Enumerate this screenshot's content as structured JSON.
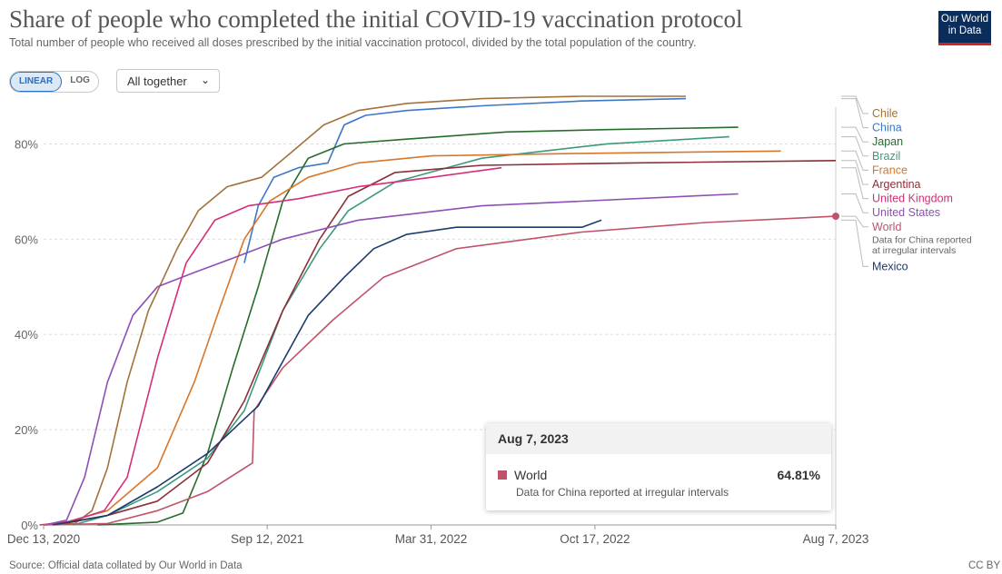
{
  "header": {
    "title": "Share of people who completed the initial COVID-19 vaccination protocol",
    "subtitle": "Total number of people who received all doses prescribed by the initial vaccination protocol, divided by the total population of the country.",
    "logo_line1": "Our World",
    "logo_line2": "in Data"
  },
  "controls": {
    "linear_label": "LINEAR",
    "log_label": "LOG",
    "dropdown_label": "All together",
    "selected_scale": "linear"
  },
  "tooltip": {
    "date": "Aug 7, 2023",
    "entity": "World",
    "value": "64.81%",
    "note": "Data for China reported at irregular intervals"
  },
  "footer": {
    "source": "Source: Official data collated by Our World in Data",
    "license": "CC BY"
  },
  "chart_data": {
    "type": "line",
    "title": "Share of people who completed the initial COVID-19 vaccination protocol",
    "ylabel": "",
    "xlabel": "",
    "y_unit": "%",
    "ylim": [
      0,
      90
    ],
    "xlim": [
      "2020-12-13",
      "2023-08-07"
    ],
    "grid": "horizontal dashed",
    "legend": "right",
    "x_ticks": [
      {
        "date": "2020-12-13",
        "label": "Dec 13, 2020"
      },
      {
        "date": "2021-09-12",
        "label": "Sep 12, 2021"
      },
      {
        "date": "2022-03-31",
        "label": "Mar 31, 2022"
      },
      {
        "date": "2022-10-17",
        "label": "Oct 17, 2022"
      },
      {
        "date": "2023-08-07",
        "label": "Aug 7, 2023"
      }
    ],
    "y_ticks": [
      {
        "value": 0,
        "label": "0%"
      },
      {
        "value": 20,
        "label": "20%"
      },
      {
        "value": 40,
        "label": "40%"
      },
      {
        "value": 60,
        "label": "60%"
      },
      {
        "value": 80,
        "label": "80%"
      }
    ],
    "series": [
      {
        "name": "Chile",
        "color": "#a2723a",
        "points": [
          [
            "2020-12-13",
            0
          ],
          [
            "2021-01-20",
            0.3
          ],
          [
            "2021-02-10",
            3
          ],
          [
            "2021-03-01",
            12
          ],
          [
            "2021-03-25",
            30
          ],
          [
            "2021-04-20",
            45
          ],
          [
            "2021-05-25",
            58
          ],
          [
            "2021-06-20",
            66
          ],
          [
            "2021-07-25",
            71
          ],
          [
            "2021-09-05",
            73
          ],
          [
            "2021-10-10",
            78
          ],
          [
            "2021-11-20",
            84
          ],
          [
            "2022-01-01",
            87
          ],
          [
            "2022-03-01",
            88.5
          ],
          [
            "2022-06-01",
            89.5
          ],
          [
            "2022-10-01",
            90
          ],
          [
            "2023-02-05",
            90
          ]
        ]
      },
      {
        "name": "China",
        "color": "#3c78c7",
        "points": [
          [
            "2021-08-15",
            55
          ],
          [
            "2021-09-01",
            67
          ],
          [
            "2021-09-20",
            73
          ],
          [
            "2021-10-20",
            75
          ],
          [
            "2021-11-25",
            76
          ],
          [
            "2021-12-15",
            84
          ],
          [
            "2022-01-10",
            86
          ],
          [
            "2022-03-01",
            87
          ],
          [
            "2022-06-01",
            88
          ],
          [
            "2022-10-01",
            89
          ],
          [
            "2023-02-05",
            89.5
          ]
        ]
      },
      {
        "name": "Japan",
        "color": "#276c2d",
        "points": [
          [
            "2021-02-17",
            0
          ],
          [
            "2021-05-01",
            0.6
          ],
          [
            "2021-06-01",
            2.5
          ],
          [
            "2021-07-01",
            15
          ],
          [
            "2021-08-01",
            33
          ],
          [
            "2021-09-01",
            50
          ],
          [
            "2021-10-01",
            68
          ],
          [
            "2021-11-01",
            77
          ],
          [
            "2021-12-15",
            80
          ],
          [
            "2022-03-01",
            81
          ],
          [
            "2022-07-01",
            82.5
          ],
          [
            "2022-11-01",
            83
          ],
          [
            "2023-04-10",
            83.5
          ]
        ]
      },
      {
        "name": "Brazil",
        "color": "#3a9b7c",
        "points": [
          [
            "2021-01-18",
            0
          ],
          [
            "2021-03-01",
            2
          ],
          [
            "2021-05-01",
            7
          ],
          [
            "2021-07-01",
            14
          ],
          [
            "2021-08-15",
            24
          ],
          [
            "2021-10-01",
            45
          ],
          [
            "2021-11-15",
            58
          ],
          [
            "2021-12-20",
            66
          ],
          [
            "2022-02-15",
            72
          ],
          [
            "2022-06-01",
            77
          ],
          [
            "2022-11-01",
            80
          ],
          [
            "2023-03-30",
            81.5
          ]
        ]
      },
      {
        "name": "France",
        "color": "#d8762a",
        "points": [
          [
            "2020-12-27",
            0
          ],
          [
            "2021-03-01",
            3
          ],
          [
            "2021-05-01",
            12
          ],
          [
            "2021-06-15",
            30
          ],
          [
            "2021-07-15",
            45
          ],
          [
            "2021-08-15",
            60
          ],
          [
            "2021-09-15",
            68
          ],
          [
            "2021-11-01",
            73
          ],
          [
            "2022-01-01",
            76
          ],
          [
            "2022-04-01",
            77.5
          ],
          [
            "2022-10-01",
            78
          ],
          [
            "2023-06-01",
            78.5
          ]
        ]
      },
      {
        "name": "Argentina",
        "color": "#8c2f38",
        "points": [
          [
            "2020-12-29",
            0
          ],
          [
            "2021-03-01",
            2
          ],
          [
            "2021-05-01",
            5
          ],
          [
            "2021-07-01",
            13
          ],
          [
            "2021-08-15",
            26
          ],
          [
            "2021-10-01",
            45
          ],
          [
            "2021-11-15",
            60
          ],
          [
            "2021-12-20",
            69
          ],
          [
            "2022-02-15",
            74
          ],
          [
            "2022-06-01",
            75.5
          ],
          [
            "2022-12-01",
            76
          ],
          [
            "2023-08-07",
            76.5
          ]
        ]
      },
      {
        "name": "United Kingdom",
        "color": "#d62d79",
        "points": [
          [
            "2020-12-08",
            0
          ],
          [
            "2021-01-15",
            0.7
          ],
          [
            "2021-02-25",
            3
          ],
          [
            "2021-03-25",
            10
          ],
          [
            "2021-05-01",
            35
          ],
          [
            "2021-06-05",
            55
          ],
          [
            "2021-07-10",
            64
          ],
          [
            "2021-08-20",
            67
          ],
          [
            "2021-10-20",
            68.5
          ],
          [
            "2022-01-01",
            71
          ],
          [
            "2022-04-01",
            73
          ],
          [
            "2022-06-25",
            75
          ]
        ]
      },
      {
        "name": "United States",
        "color": "#8d4fb5",
        "points": [
          [
            "2020-12-14",
            0
          ],
          [
            "2021-01-10",
            1
          ],
          [
            "2021-02-01",
            10
          ],
          [
            "2021-03-01",
            30
          ],
          [
            "2021-04-01",
            44
          ],
          [
            "2021-05-01",
            50
          ],
          [
            "2021-06-15",
            53
          ],
          [
            "2021-08-01",
            56
          ],
          [
            "2021-10-01",
            60
          ],
          [
            "2022-01-01",
            64
          ],
          [
            "2022-06-01",
            67
          ],
          [
            "2023-04-10",
            69.5
          ]
        ]
      },
      {
        "name": "World",
        "color": "#c0536a",
        "points": [
          [
            "2020-12-13",
            0
          ],
          [
            "2021-03-01",
            0.3
          ],
          [
            "2021-05-01",
            3
          ],
          [
            "2021-07-01",
            7
          ],
          [
            "2021-08-25",
            13
          ],
          [
            "2021-08-27",
            24
          ],
          [
            "2021-10-01",
            33
          ],
          [
            "2021-12-01",
            43
          ],
          [
            "2022-02-01",
            52
          ],
          [
            "2022-05-01",
            58
          ],
          [
            "2022-10-01",
            61.5
          ],
          [
            "2023-03-01",
            63.5
          ],
          [
            "2023-08-07",
            64.81
          ]
        ]
      },
      {
        "name": "Mexico",
        "color": "#1b3b6e",
        "points": [
          [
            "2020-12-24",
            0
          ],
          [
            "2021-03-01",
            2
          ],
          [
            "2021-05-01",
            8
          ],
          [
            "2021-07-01",
            15
          ],
          [
            "2021-09-01",
            25
          ],
          [
            "2021-11-01",
            44
          ],
          [
            "2021-12-15",
            52
          ],
          [
            "2022-01-20",
            58
          ],
          [
            "2022-03-01",
            61
          ],
          [
            "2022-05-01",
            62.5
          ],
          [
            "2022-10-01",
            62.5
          ],
          [
            "2022-10-25",
            64
          ]
        ]
      }
    ],
    "labels": [
      {
        "text": "Chile",
        "series": "Chile"
      },
      {
        "text": "China",
        "series": "China"
      },
      {
        "text": "Japan",
        "series": "Japan"
      },
      {
        "text": "Brazil",
        "series": "Brazil"
      },
      {
        "text": "France",
        "series": "France"
      },
      {
        "text": "Argentina",
        "series": "Argentina"
      },
      {
        "text": "United Kingdom",
        "series": "United Kingdom"
      },
      {
        "text": "United States",
        "series": "United States"
      },
      {
        "text": "World",
        "series": "World",
        "note": "Data for China reported at irregular intervals"
      },
      {
        "text": "Mexico",
        "series": "Mexico"
      }
    ]
  }
}
